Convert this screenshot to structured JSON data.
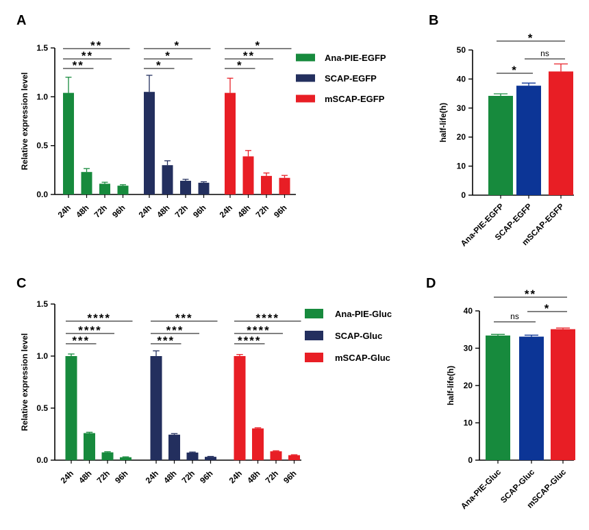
{
  "chart_data": [
    {
      "panel": "A",
      "type": "bar",
      "ylabel": "Relative expression level",
      "ylim": [
        0,
        1.5
      ],
      "yticks": [
        "0.0",
        "0.5",
        "1.0",
        "1.5"
      ],
      "categories": [
        "24h",
        "48h",
        "72h",
        "96h"
      ],
      "series": [
        {
          "name": "Ana-PIE-EGFP",
          "color": "#178a3d",
          "values": [
            1.04,
            0.23,
            0.11,
            0.09
          ],
          "errors": [
            0.16,
            0.035,
            0.015,
            0.01
          ],
          "sig": [
            {
              "from": 0,
              "to": 1,
              "label": "**"
            },
            {
              "from": 0,
              "to": 2,
              "label": "**"
            },
            {
              "from": 0,
              "to": 3,
              "label": "**"
            }
          ]
        },
        {
          "name": "SCAP-EGFP",
          "color": "#232f5e",
          "values": [
            1.05,
            0.3,
            0.14,
            0.12
          ],
          "errors": [
            0.17,
            0.045,
            0.015,
            0.01
          ],
          "sig": [
            {
              "from": 0,
              "to": 1,
              "label": "*"
            },
            {
              "from": 0,
              "to": 2,
              "label": "*"
            },
            {
              "from": 0,
              "to": 3,
              "label": "*"
            }
          ]
        },
        {
          "name": "mSCAP-EGFP",
          "color": "#e81e25",
          "values": [
            1.04,
            0.39,
            0.19,
            0.17
          ],
          "errors": [
            0.15,
            0.06,
            0.03,
            0.025
          ],
          "sig": [
            {
              "from": 0,
              "to": 1,
              "label": "*"
            },
            {
              "from": 0,
              "to": 2,
              "label": "**"
            },
            {
              "from": 0,
              "to": 3,
              "label": "*"
            }
          ]
        }
      ]
    },
    {
      "panel": "B",
      "type": "bar",
      "ylabel": "half-life(h)",
      "ylim": [
        0,
        50
      ],
      "yticks": [
        "0",
        "10",
        "20",
        "30",
        "40",
        "50"
      ],
      "categories": [
        "Ana-PIE-EGFP",
        "SCAP-EGFP",
        "mSCAP-EGFP"
      ],
      "colors": [
        "#178a3d",
        "#0c3596",
        "#e81e25"
      ],
      "values": [
        34.2,
        37.7,
        42.6
      ],
      "errors": [
        0.7,
        0.9,
        2.6
      ],
      "sig": [
        {
          "from": 0,
          "to": 1,
          "label": "*"
        },
        {
          "from": 1,
          "to": 2,
          "label": "ns"
        },
        {
          "from": 0,
          "to": 2,
          "label": "*"
        }
      ]
    },
    {
      "panel": "C",
      "type": "bar",
      "ylabel": "Relative expression level",
      "ylim": [
        0,
        1.5
      ],
      "yticks": [
        "0.0",
        "0.5",
        "1.0",
        "1.5"
      ],
      "categories": [
        "24h",
        "48h",
        "72h",
        "96h"
      ],
      "series": [
        {
          "name": "Ana-PIE-Gluc",
          "color": "#178a3d",
          "values": [
            1.0,
            0.26,
            0.075,
            0.028
          ],
          "errors": [
            0.02,
            0.008,
            0.006,
            0.004
          ],
          "sig": [
            {
              "from": 0,
              "to": 1,
              "label": "***"
            },
            {
              "from": 0,
              "to": 2,
              "label": "****"
            },
            {
              "from": 0,
              "to": 3,
              "label": "****"
            }
          ]
        },
        {
          "name": "SCAP-Gluc",
          "color": "#232f5e",
          "values": [
            1.0,
            0.245,
            0.073,
            0.032
          ],
          "errors": [
            0.05,
            0.01,
            0.005,
            0.004
          ],
          "sig": [
            {
              "from": 0,
              "to": 1,
              "label": "***"
            },
            {
              "from": 0,
              "to": 2,
              "label": "***"
            },
            {
              "from": 0,
              "to": 3,
              "label": "***"
            }
          ]
        },
        {
          "name": "mSCAP-Gluc",
          "color": "#e81e25",
          "values": [
            1.0,
            0.305,
            0.085,
            0.048
          ],
          "errors": [
            0.015,
            0.006,
            0.005,
            0.004
          ],
          "sig": [
            {
              "from": 0,
              "to": 1,
              "label": "****"
            },
            {
              "from": 0,
              "to": 2,
              "label": "****"
            },
            {
              "from": 0,
              "to": 3,
              "label": "****"
            }
          ]
        }
      ]
    },
    {
      "panel": "D",
      "type": "bar",
      "ylabel": "half-life(h)",
      "ylim": [
        0,
        40
      ],
      "yticks": [
        "0",
        "10",
        "20",
        "30",
        "40"
      ],
      "categories": [
        "Ana-PIE-Gluc",
        "SCAP-Gluc",
        "mSCAP-Gluc"
      ],
      "colors": [
        "#178a3d",
        "#0c3596",
        "#e81e25"
      ],
      "values": [
        33.4,
        33.1,
        35.1
      ],
      "errors": [
        0.3,
        0.4,
        0.3
      ],
      "sig": [
        {
          "from": 0,
          "to": 1,
          "label": "ns"
        },
        {
          "from": 1,
          "to": 2,
          "label": "*"
        },
        {
          "from": 0,
          "to": 2,
          "label": "**"
        }
      ]
    }
  ]
}
